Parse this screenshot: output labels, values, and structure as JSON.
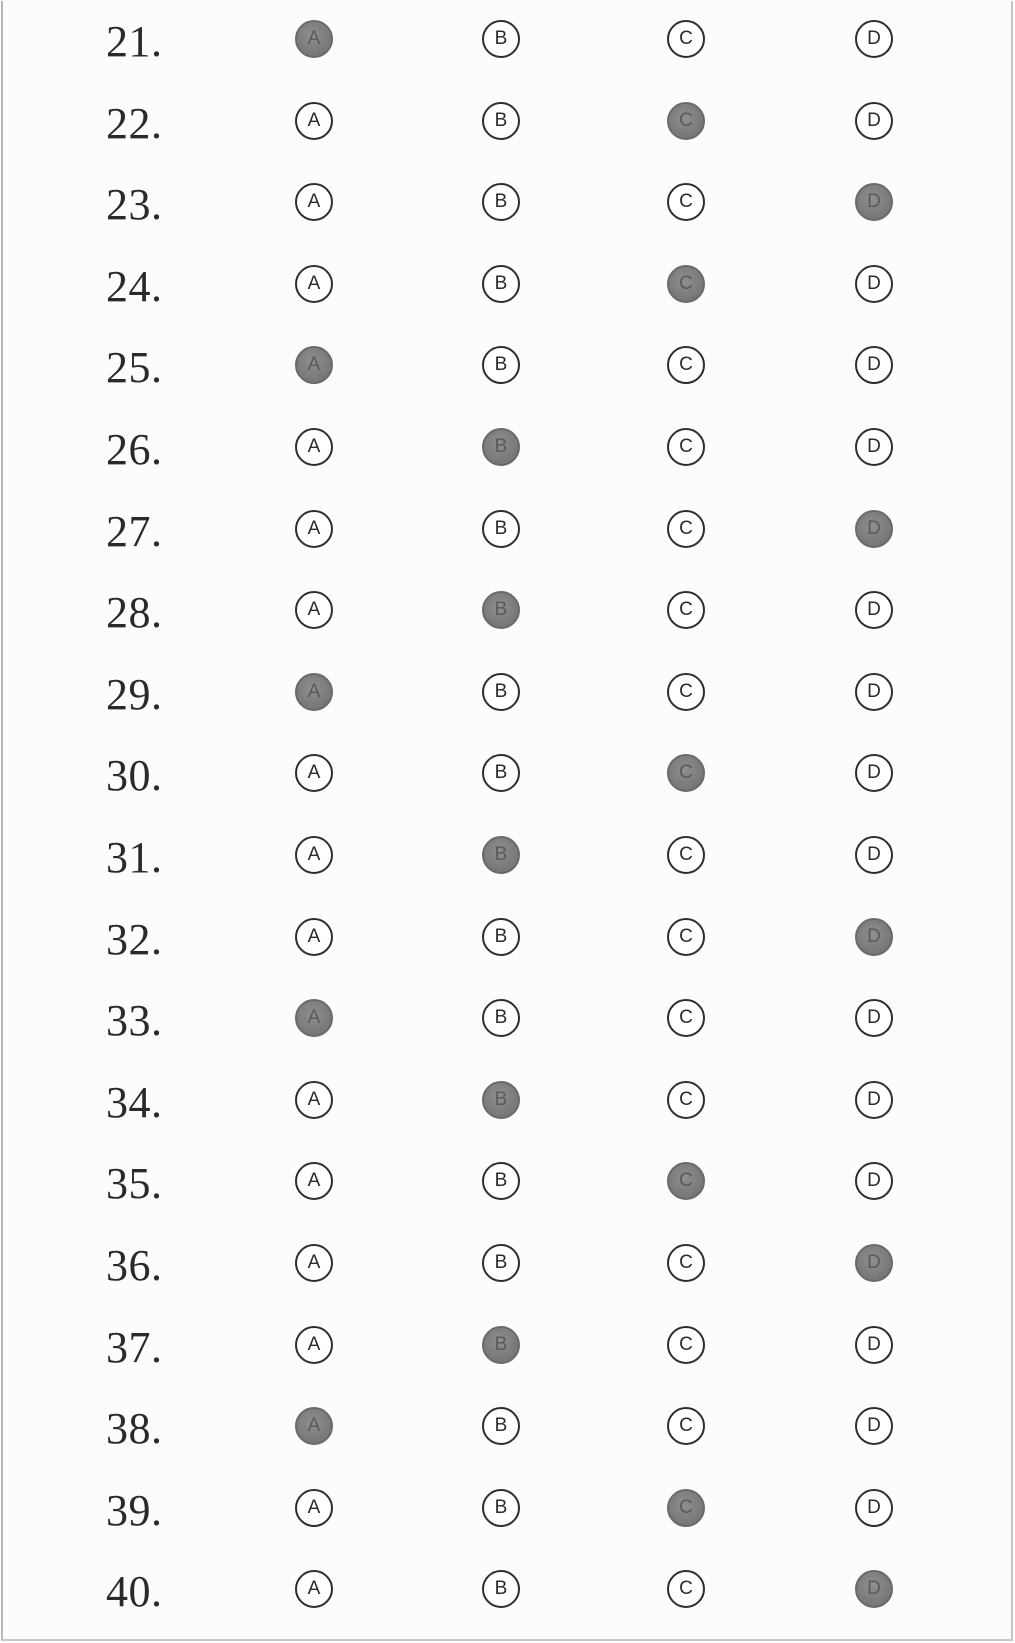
{
  "sheet": {
    "title": "",
    "choices": [
      "A",
      "B",
      "C",
      "D"
    ],
    "questions": [
      {
        "number": "21.",
        "answer": "A"
      },
      {
        "number": "22.",
        "answer": "C"
      },
      {
        "number": "23.",
        "answer": "D"
      },
      {
        "number": "24.",
        "answer": "C"
      },
      {
        "number": "25.",
        "answer": "A"
      },
      {
        "number": "26.",
        "answer": "B"
      },
      {
        "number": "27.",
        "answer": "D"
      },
      {
        "number": "28.",
        "answer": "B"
      },
      {
        "number": "29.",
        "answer": "A"
      },
      {
        "number": "30.",
        "answer": "C"
      },
      {
        "number": "31.",
        "answer": "B"
      },
      {
        "number": "32.",
        "answer": "D"
      },
      {
        "number": "33.",
        "answer": "A"
      },
      {
        "number": "34.",
        "answer": "B"
      },
      {
        "number": "35.",
        "answer": "C"
      },
      {
        "number": "36.",
        "answer": "D"
      },
      {
        "number": "37.",
        "answer": "B"
      },
      {
        "number": "38.",
        "answer": "A"
      },
      {
        "number": "39.",
        "answer": "C"
      },
      {
        "number": "40.",
        "answer": "D"
      }
    ]
  },
  "colors": {
    "ink": "#2e2e2e",
    "fill": "#7c7c7c",
    "paper": "#fcfcfc"
  }
}
